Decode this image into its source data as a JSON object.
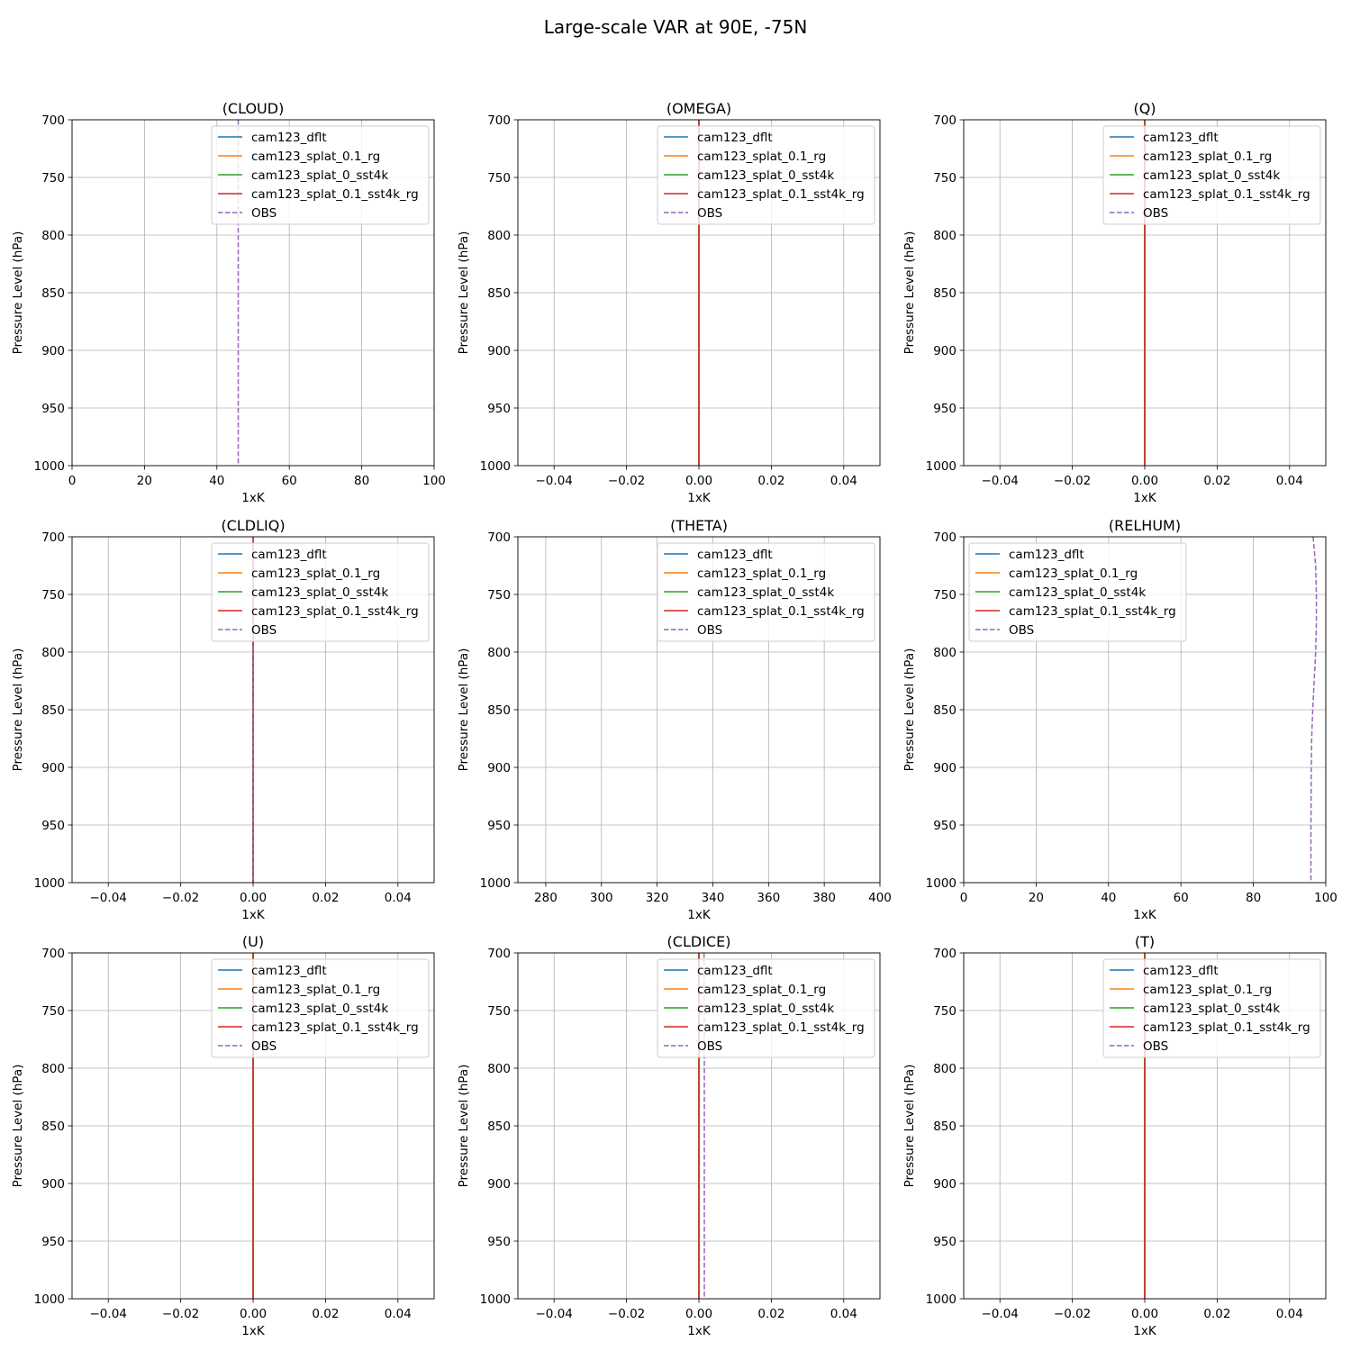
{
  "title": "Large-scale VAR at 90E, -75N",
  "colors": {
    "cam123_dflt": "#1f77b4",
    "cam123_splat_0.1_rg": "#ff7f0e",
    "cam123_splat_0_sst4k": "#2ca02c",
    "cam123_splat_0.1_sst4k_rg": "#d62728",
    "OBS": "#9467bd"
  },
  "chart_data": [
    {
      "type": "line",
      "title": "(CLOUD)",
      "xlabel": "1xK",
      "ylabel": "Pressure Level (hPa)",
      "xlim": [
        0,
        100
      ],
      "ylim": [
        1000,
        700
      ],
      "grid": true,
      "legend": "upper right",
      "xticks": [
        "0",
        "20",
        "40",
        "60",
        "80",
        "100"
      ],
      "xtick_values": [
        0,
        20,
        40,
        60,
        80,
        100
      ],
      "yticks": [
        "700",
        "750",
        "800",
        "850",
        "900",
        "950",
        "1000"
      ],
      "ytick_values": [
        700,
        750,
        800,
        850,
        900,
        950,
        1000
      ],
      "series": [
        {
          "name": "cam123_dflt",
          "style": "solid",
          "x": [],
          "y": []
        },
        {
          "name": "cam123_splat_0.1_rg",
          "style": "solid",
          "x": [],
          "y": []
        },
        {
          "name": "cam123_splat_0_sst4k",
          "style": "solid",
          "x": [],
          "y": []
        },
        {
          "name": "cam123_splat_0.1_sst4k_rg",
          "style": "solid",
          "x": [],
          "y": []
        },
        {
          "name": "OBS",
          "style": "dashed",
          "x": [
            45.9,
            45.9
          ],
          "y": [
            700,
            1000
          ]
        }
      ]
    },
    {
      "type": "line",
      "title": "(OMEGA)",
      "xlabel": "1xK",
      "ylabel": "Pressure Level (hPa)",
      "xlim": [
        -0.05,
        0.05
      ],
      "ylim": [
        1000,
        700
      ],
      "grid": true,
      "legend": "upper right",
      "xticks": [
        "−0.04",
        "−0.02",
        "0.00",
        "0.02",
        "0.04"
      ],
      "xtick_values": [
        -0.04,
        -0.02,
        0,
        0.02,
        0.04
      ],
      "yticks": [
        "700",
        "750",
        "800",
        "850",
        "900",
        "950",
        "1000"
      ],
      "ytick_values": [
        700,
        750,
        800,
        850,
        900,
        950,
        1000
      ],
      "series": [
        {
          "name": "cam123_dflt",
          "style": "solid",
          "x": [
            0,
            0
          ],
          "y": [
            700,
            1000
          ]
        },
        {
          "name": "cam123_splat_0.1_rg",
          "style": "solid",
          "x": [
            0,
            0
          ],
          "y": [
            700,
            1000
          ]
        },
        {
          "name": "cam123_splat_0_sst4k",
          "style": "solid",
          "x": [
            0,
            0
          ],
          "y": [
            700,
            1000
          ]
        },
        {
          "name": "cam123_splat_0.1_sst4k_rg",
          "style": "solid",
          "x": [
            0,
            0
          ],
          "y": [
            700,
            1000
          ]
        },
        {
          "name": "OBS",
          "style": "dashed",
          "x": [],
          "y": []
        }
      ]
    },
    {
      "type": "line",
      "title": "(Q)",
      "xlabel": "1xK",
      "ylabel": "Pressure Level (hPa)",
      "xlim": [
        -0.05,
        0.05
      ],
      "ylim": [
        1000,
        700
      ],
      "grid": true,
      "legend": "upper right",
      "xticks": [
        "−0.04",
        "−0.02",
        "0.00",
        "0.02",
        "0.04"
      ],
      "xtick_values": [
        -0.04,
        -0.02,
        0,
        0.02,
        0.04
      ],
      "yticks": [
        "700",
        "750",
        "800",
        "850",
        "900",
        "950",
        "1000"
      ],
      "ytick_values": [
        700,
        750,
        800,
        850,
        900,
        950,
        1000
      ],
      "series": [
        {
          "name": "cam123_dflt",
          "style": "solid",
          "x": [
            0,
            0
          ],
          "y": [
            700,
            1000
          ]
        },
        {
          "name": "cam123_splat_0.1_rg",
          "style": "solid",
          "x": [
            0,
            0
          ],
          "y": [
            700,
            1000
          ]
        },
        {
          "name": "cam123_splat_0_sst4k",
          "style": "solid",
          "x": [
            0,
            0
          ],
          "y": [
            700,
            1000
          ]
        },
        {
          "name": "cam123_splat_0.1_sst4k_rg",
          "style": "solid",
          "x": [
            0,
            0
          ],
          "y": [
            700,
            1000
          ]
        },
        {
          "name": "OBS",
          "style": "dashed",
          "x": [],
          "y": []
        }
      ]
    },
    {
      "type": "line",
      "title": "(CLDLIQ)",
      "xlabel": "1xK",
      "ylabel": "Pressure Level (hPa)",
      "xlim": [
        -0.05,
        0.05
      ],
      "ylim": [
        1000,
        700
      ],
      "grid": true,
      "legend": "upper right",
      "xticks": [
        "−0.04",
        "−0.02",
        "0.00",
        "0.02",
        "0.04"
      ],
      "xtick_values": [
        -0.04,
        -0.02,
        0,
        0.02,
        0.04
      ],
      "yticks": [
        "700",
        "750",
        "800",
        "850",
        "900",
        "950",
        "1000"
      ],
      "ytick_values": [
        700,
        750,
        800,
        850,
        900,
        950,
        1000
      ],
      "series": [
        {
          "name": "cam123_dflt",
          "style": "solid",
          "x": [
            0,
            0
          ],
          "y": [
            700,
            1000
          ]
        },
        {
          "name": "cam123_splat_0.1_rg",
          "style": "solid",
          "x": [
            0,
            0
          ],
          "y": [
            700,
            1000
          ]
        },
        {
          "name": "cam123_splat_0_sst4k",
          "style": "solid",
          "x": [
            0,
            0
          ],
          "y": [
            700,
            1000
          ]
        },
        {
          "name": "cam123_splat_0.1_sst4k_rg",
          "style": "solid",
          "x": [
            0,
            0
          ],
          "y": [
            700,
            1000
          ]
        },
        {
          "name": "OBS",
          "style": "dashed",
          "x": [
            1e-05,
            1e-05
          ],
          "y": [
            700,
            1000
          ]
        }
      ]
    },
    {
      "type": "line",
      "title": "(THETA)",
      "xlabel": "1xK",
      "ylabel": "Pressure Level (hPa)",
      "xlim": [
        270,
        400
      ],
      "ylim": [
        1000,
        700
      ],
      "grid": true,
      "legend": "upper right",
      "xticks": [
        "280",
        "300",
        "320",
        "340",
        "360",
        "380",
        "400"
      ],
      "xtick_values": [
        280,
        300,
        320,
        340,
        360,
        380,
        400
      ],
      "yticks": [
        "700",
        "750",
        "800",
        "850",
        "900",
        "950",
        "1000"
      ],
      "ytick_values": [
        700,
        750,
        800,
        850,
        900,
        950,
        1000
      ],
      "series": [
        {
          "name": "cam123_dflt",
          "style": "solid",
          "x": [],
          "y": []
        },
        {
          "name": "cam123_splat_0.1_rg",
          "style": "solid",
          "x": [],
          "y": []
        },
        {
          "name": "cam123_splat_0_sst4k",
          "style": "solid",
          "x": [],
          "y": []
        },
        {
          "name": "cam123_splat_0.1_sst4k_rg",
          "style": "solid",
          "x": [],
          "y": []
        },
        {
          "name": "OBS",
          "style": "dashed",
          "x": [],
          "y": []
        }
      ]
    },
    {
      "type": "line",
      "title": "(RELHUM)",
      "xlabel": "1xK",
      "ylabel": "Pressure Level (hPa)",
      "xlim": [
        0,
        100
      ],
      "ylim": [
        1000,
        700
      ],
      "grid": true,
      "legend": "upper left",
      "xticks": [
        "0",
        "20",
        "40",
        "60",
        "80",
        "100"
      ],
      "xtick_values": [
        0,
        20,
        40,
        60,
        80,
        100
      ],
      "yticks": [
        "700",
        "750",
        "800",
        "850",
        "900",
        "950",
        "1000"
      ],
      "ytick_values": [
        700,
        750,
        800,
        850,
        900,
        950,
        1000
      ],
      "series": [
        {
          "name": "cam123_dflt",
          "style": "solid",
          "x": [],
          "y": []
        },
        {
          "name": "cam123_splat_0.1_rg",
          "style": "solid",
          "x": [],
          "y": []
        },
        {
          "name": "cam123_splat_0_sst4k",
          "style": "solid",
          "x": [],
          "y": []
        },
        {
          "name": "cam123_splat_0.1_sst4k_rg",
          "style": "solid",
          "x": [],
          "y": []
        },
        {
          "name": "OBS",
          "style": "dashed",
          "x": [
            96.5,
            97.2,
            97.4,
            97.4,
            97.2,
            96.8,
            96.4,
            96.1,
            96.0,
            95.9,
            95.9
          ],
          "y": [
            700,
            725,
            750,
            775,
            800,
            825,
            850,
            875,
            900,
            950,
            1000
          ]
        }
      ]
    },
    {
      "type": "line",
      "title": "(U)",
      "xlabel": "1xK",
      "ylabel": "Pressure Level (hPa)",
      "xlim": [
        -0.05,
        0.05
      ],
      "ylim": [
        1000,
        700
      ],
      "grid": true,
      "legend": "upper right",
      "xticks": [
        "−0.04",
        "−0.02",
        "0.00",
        "0.02",
        "0.04"
      ],
      "xtick_values": [
        -0.04,
        -0.02,
        0,
        0.02,
        0.04
      ],
      "yticks": [
        "700",
        "750",
        "800",
        "850",
        "900",
        "950",
        "1000"
      ],
      "ytick_values": [
        700,
        750,
        800,
        850,
        900,
        950,
        1000
      ],
      "series": [
        {
          "name": "cam123_dflt",
          "style": "solid",
          "x": [
            0,
            0
          ],
          "y": [
            700,
            1000
          ]
        },
        {
          "name": "cam123_splat_0.1_rg",
          "style": "solid",
          "x": [
            0,
            0
          ],
          "y": [
            700,
            1000
          ]
        },
        {
          "name": "cam123_splat_0_sst4k",
          "style": "solid",
          "x": [
            0,
            0
          ],
          "y": [
            700,
            1000
          ]
        },
        {
          "name": "cam123_splat_0.1_sst4k_rg",
          "style": "solid",
          "x": [
            0,
            0
          ],
          "y": [
            700,
            1000
          ]
        },
        {
          "name": "OBS",
          "style": "dashed",
          "x": [],
          "y": []
        }
      ]
    },
    {
      "type": "line",
      "title": "(CLDICE)",
      "xlabel": "1xK",
      "ylabel": "Pressure Level (hPa)",
      "xlim": [
        -0.05,
        0.05
      ],
      "ylim": [
        1000,
        700
      ],
      "grid": true,
      "legend": "upper right",
      "xticks": [
        "−0.04",
        "−0.02",
        "0.00",
        "0.02",
        "0.04"
      ],
      "xtick_values": [
        -0.04,
        -0.02,
        0,
        0.02,
        0.04
      ],
      "yticks": [
        "700",
        "750",
        "800",
        "850",
        "900",
        "950",
        "1000"
      ],
      "ytick_values": [
        700,
        750,
        800,
        850,
        900,
        950,
        1000
      ],
      "series": [
        {
          "name": "cam123_dflt",
          "style": "solid",
          "x": [
            0,
            0
          ],
          "y": [
            700,
            1000
          ]
        },
        {
          "name": "cam123_splat_0.1_rg",
          "style": "solid",
          "x": [
            0,
            0
          ],
          "y": [
            700,
            1000
          ]
        },
        {
          "name": "cam123_splat_0_sst4k",
          "style": "solid",
          "x": [
            0,
            0
          ],
          "y": [
            700,
            1000
          ]
        },
        {
          "name": "cam123_splat_0.1_sst4k_rg",
          "style": "solid",
          "x": [
            0,
            0
          ],
          "y": [
            700,
            1000
          ]
        },
        {
          "name": "OBS",
          "style": "dashed",
          "x": [
            0.0014,
            0.0015,
            0.0015,
            0.0015
          ],
          "y": [
            700,
            800,
            900,
            1000
          ]
        }
      ]
    },
    {
      "type": "line",
      "title": "(T)",
      "xlabel": "1xK",
      "ylabel": "Pressure Level (hPa)",
      "xlim": [
        -0.05,
        0.05
      ],
      "ylim": [
        1000,
        700
      ],
      "grid": true,
      "legend": "upper right",
      "xticks": [
        "−0.04",
        "−0.02",
        "0.00",
        "0.02",
        "0.04"
      ],
      "xtick_values": [
        -0.04,
        -0.02,
        0,
        0.02,
        0.04
      ],
      "yticks": [
        "700",
        "750",
        "800",
        "850",
        "900",
        "950",
        "1000"
      ],
      "ytick_values": [
        700,
        750,
        800,
        850,
        900,
        950,
        1000
      ],
      "series": [
        {
          "name": "cam123_dflt",
          "style": "solid",
          "x": [
            0,
            0
          ],
          "y": [
            700,
            1000
          ]
        },
        {
          "name": "cam123_splat_0.1_rg",
          "style": "solid",
          "x": [
            0,
            0
          ],
          "y": [
            700,
            1000
          ]
        },
        {
          "name": "cam123_splat_0_sst4k",
          "style": "solid",
          "x": [
            0,
            0
          ],
          "y": [
            700,
            1000
          ]
        },
        {
          "name": "cam123_splat_0.1_sst4k_rg",
          "style": "solid",
          "x": [
            0,
            0
          ],
          "y": [
            700,
            1000
          ]
        },
        {
          "name": "OBS",
          "style": "dashed",
          "x": [],
          "y": []
        }
      ]
    }
  ]
}
